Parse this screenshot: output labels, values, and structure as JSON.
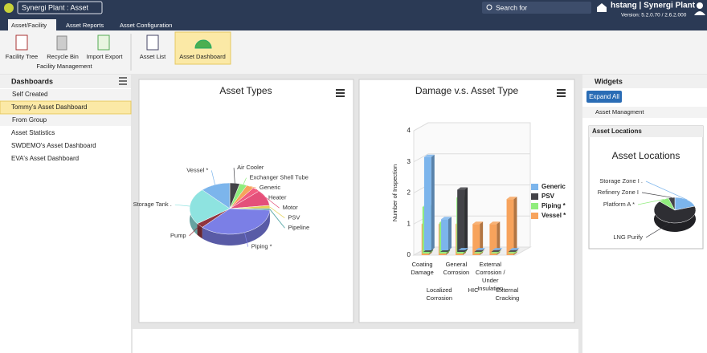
{
  "header": {
    "app_select": "Synergi Plant : Asset",
    "search_placeholder": "Search for",
    "user": "hstang | Synergi Plant",
    "version": "Version: 5.2.0.70 / 2.6.2.000"
  },
  "tabs": [
    "Asset/Facility",
    "Asset Reports",
    "Asset Configuration"
  ],
  "ribbon": {
    "buttons": [
      "Facility Tree",
      "Recycle Bin",
      "Import Export",
      "Asset List",
      "Asset Dashboard"
    ],
    "group_label": "Facility Management"
  },
  "sidebar": {
    "title": "Dashboards",
    "self_created": "Self Created",
    "self_items": [
      "Tommy's Asset Dashboard"
    ],
    "from_group": "From Group",
    "group_items": [
      "Asset Statistics",
      "SWDEMO's Asset Dashboard",
      "EVA's Asset Dashboard"
    ]
  },
  "widgets": {
    "title": "Widgets",
    "expand_all": "Expand All",
    "section": "Asset Managment",
    "widget_title": "Asset Locations"
  },
  "chart_data": [
    {
      "type": "pie",
      "title": "Asset Types",
      "categories": [
        "Air Cooler",
        "Exchanger Shell Tube",
        "Generic",
        "Heater",
        "Motor",
        "PSV",
        "Pipeline",
        "Piping *",
        "Pump",
        "Storage Tank .",
        "Vessel *"
      ],
      "values": [
        4,
        3,
        3,
        3,
        10,
        2,
        1,
        36,
        3,
        23,
        12
      ],
      "colors": [
        "#434348",
        "#90ed7d",
        "#f7a35c",
        "#f15c80",
        "#e4507a",
        "#e4d354",
        "#2b908f",
        "#7b7fe6",
        "#91353f",
        "#8ee3e0",
        "#7cb5ec"
      ]
    },
    {
      "type": "bar",
      "title": "Damage v.s. Asset Type",
      "y_label": "Number of Inspection",
      "categories": [
        "Coating Damage",
        "Localized Corrosion",
        "General Corrosion",
        "HIC",
        "External Corrosion / Under Insulation",
        "External Cracking"
      ],
      "series": [
        {
          "name": "Generic",
          "color": "#7cb5ec",
          "values": [
            3,
            1,
            0,
            0,
            0,
            0
          ]
        },
        {
          "name": "PSV",
          "color": "#434348",
          "values": [
            0,
            0,
            2,
            0,
            0,
            0
          ]
        },
        {
          "name": "Piping *",
          "color": "#90ed7d",
          "values": [
            1.5,
            1,
            1.8,
            0,
            0,
            0
          ]
        },
        {
          "name": "Vessel *",
          "color": "#f7a35c",
          "values": [
            1,
            1,
            1,
            1,
            1,
            1.8
          ]
        }
      ],
      "ylim": [
        0,
        4
      ],
      "yticks": [
        0,
        1,
        2,
        3,
        4
      ],
      "grid": true,
      "legend": "right"
    },
    {
      "type": "pie",
      "title": "Asset Locations",
      "categories": [
        "Storage Zone I .",
        "LNG Purify",
        "Platform A *",
        "Refinery Zone I"
      ],
      "values": [
        20,
        67,
        8,
        5
      ],
      "colors": [
        "#7cb5ec",
        "#2e2e33",
        "#90ed7d",
        "#434348"
      ]
    }
  ]
}
